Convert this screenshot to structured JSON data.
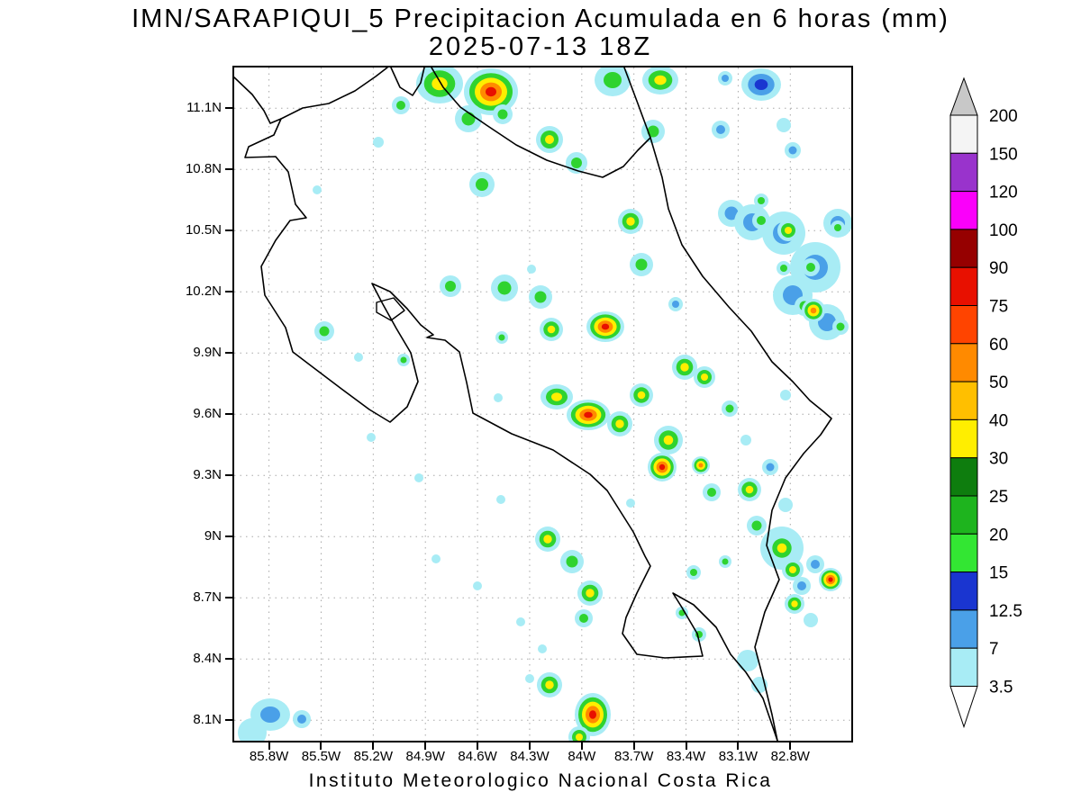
{
  "title": {
    "line1": "IMN/SARAPIQUI_5 Precipitacion Acumulada en 6 horas (mm)",
    "line2": "2025-07-13 18Z"
  },
  "footer": "Instituto Meteorologico Nacional Costa Rica",
  "axes": {
    "y_ticks": [
      "11.1N",
      "10.8N",
      "10.5N",
      "10.2N",
      "9.9N",
      "9.6N",
      "9.3N",
      "9N",
      "8.7N",
      "8.4N",
      "8.1N"
    ],
    "x_ticks": [
      "85.8W",
      "85.5W",
      "85.2W",
      "84.9W",
      "84.6W",
      "84.3W",
      "84W",
      "83.7W",
      "83.4W",
      "83.1W",
      "82.8W"
    ]
  },
  "colorbar": {
    "units": "mm",
    "levels": [
      "200",
      "150",
      "120",
      "100",
      "90",
      "75",
      "60",
      "50",
      "40",
      "30",
      "25",
      "20",
      "15",
      "12.5",
      "7",
      "3.5"
    ],
    "segment_colors": [
      "#f4f4f4",
      "#9933cc",
      "#fa00fa",
      "#960000",
      "#e81000",
      "#ff4400",
      "#ff8a00",
      "#ffbf00",
      "#ffee00",
      "#0e7d0e",
      "#1eb41e",
      "#33e633",
      "#1a35d0",
      "#4aa0e8",
      "#a8ecf5"
    ],
    "above_color": "#c8c8c8",
    "below_color": "#ffffff"
  },
  "map": {
    "grid_color": "#a8a8a8",
    "coast_color": "#000000",
    "palettes": {
      "rain": [
        "#a8ecf5",
        "#2fd32f",
        "#ffee00",
        "#ff8a00",
        "#e81000"
      ],
      "blue": [
        "#a8ecf5",
        "#4aa0e8",
        "#1a35d0"
      ]
    },
    "coast_paths": [
      [
        [
          0,
          11
        ],
        [
          20,
          30
        ],
        [
          33,
          48
        ],
        [
          40,
          62
        ],
        [
          52,
          57
        ],
        [
          44,
          75
        ],
        [
          16,
          88
        ],
        [
          12,
          100
        ],
        [
          46,
          99
        ],
        [
          60,
          116
        ],
        [
          68,
          152
        ],
        [
          80,
          167
        ],
        [
          62,
          170
        ],
        [
          46,
          192
        ],
        [
          30,
          221
        ],
        [
          34,
          253
        ],
        [
          57,
          289
        ],
        [
          65,
          316
        ],
        [
          86,
          332
        ],
        [
          119,
          357
        ],
        [
          150,
          380
        ],
        [
          173,
          394
        ],
        [
          192,
          377
        ],
        [
          204,
          349
        ],
        [
          196,
          317
        ],
        [
          180,
          290
        ],
        [
          165,
          263
        ],
        [
          153,
          240
        ],
        [
          173,
          249
        ],
        [
          192,
          268
        ],
        [
          207,
          286
        ],
        [
          221,
          297
        ],
        [
          214,
          300
        ],
        [
          234,
          303
        ],
        [
          250,
          316
        ],
        [
          258,
          350
        ],
        [
          265,
          384
        ],
        [
          308,
          407
        ],
        [
          354,
          425
        ],
        [
          395,
          452
        ],
        [
          414,
          470
        ],
        [
          443,
          516
        ],
        [
          456,
          543
        ],
        [
          462,
          554
        ],
        [
          447,
          584
        ],
        [
          435,
          611
        ],
        [
          431,
          629
        ],
        [
          447,
          652
        ],
        [
          478,
          656
        ],
        [
          520,
          654
        ],
        [
          514,
          629
        ],
        [
          497,
          600
        ],
        [
          487,
          584
        ],
        [
          510,
          597
        ],
        [
          535,
          622
        ],
        [
          551,
          652
        ],
        [
          568,
          672
        ],
        [
          587,
          701
        ],
        [
          601,
          742
        ],
        [
          603,
          748
        ]
      ],
      [
        [
          52,
          57
        ],
        [
          76,
          45
        ],
        [
          105,
          40
        ],
        [
          134,
          26
        ],
        [
          157,
          10
        ],
        [
          170,
          0
        ]
      ],
      [
        [
          174,
          0
        ],
        [
          184,
          22
        ],
        [
          198,
          31
        ],
        [
          207,
          17
        ],
        [
          211,
          0
        ]
      ],
      [
        [
          219,
          0
        ],
        [
          232,
          22
        ],
        [
          251,
          44
        ],
        [
          280,
          64
        ],
        [
          313,
          86
        ],
        [
          347,
          103
        ],
        [
          382,
          115
        ],
        [
          409,
          122
        ],
        [
          432,
          110
        ],
        [
          448,
          92
        ],
        [
          462,
          78
        ]
      ],
      [
        [
          433,
          0
        ],
        [
          448,
          40
        ],
        [
          462,
          78
        ],
        [
          475,
          122
        ],
        [
          482,
          157
        ],
        [
          497,
          197
        ],
        [
          520,
          232
        ],
        [
          549,
          266
        ],
        [
          574,
          293
        ],
        [
          597,
          327
        ],
        [
          620,
          349
        ],
        [
          639,
          370
        ],
        [
          655,
          383
        ],
        [
          663,
          390
        ],
        [
          651,
          408
        ],
        [
          632,
          429
        ],
        [
          612,
          456
        ],
        [
          597,
          492
        ],
        [
          591,
          531
        ],
        [
          605,
          569
        ],
        [
          589,
          605
        ],
        [
          578,
          644
        ],
        [
          587,
          678
        ],
        [
          597,
          719
        ],
        [
          603,
          748
        ]
      ]
    ],
    "islands": [
      [
        [
          158,
          261
        ],
        [
          177,
          256
        ],
        [
          189,
          270
        ],
        [
          174,
          281
        ],
        [
          158,
          272
        ]
      ]
    ],
    "cells": [
      [
        228,
        18,
        26,
        0,
        3,
        22
      ],
      [
        285,
        27,
        30,
        0,
        5,
        26
      ],
      [
        260,
        57,
        15,
        0,
        2
      ],
      [
        298,
        52,
        11,
        0,
        2
      ],
      [
        185,
        42,
        10,
        0,
        2
      ],
      [
        160,
        83,
        6,
        1,
        1
      ],
      [
        275,
        130,
        14,
        0,
        2
      ],
      [
        350,
        80,
        15,
        0,
        3
      ],
      [
        380,
        106,
        12,
        0,
        2
      ],
      [
        420,
        14,
        20,
        0,
        2,
        18
      ],
      [
        473,
        14,
        20,
        0,
        3,
        16
      ],
      [
        465,
        71,
        13,
        0,
        2
      ],
      [
        540,
        69,
        10,
        1,
        2
      ],
      [
        585,
        19,
        22,
        1,
        3,
        18
      ],
      [
        545,
        12,
        8,
        1,
        2
      ],
      [
        610,
        64,
        8,
        1,
        1
      ],
      [
        620,
        92,
        9,
        1,
        2
      ],
      [
        552,
        162,
        15,
        1,
        2
      ],
      [
        440,
        171,
        14,
        0,
        3
      ],
      [
        452,
        219,
        13,
        0,
        2
      ],
      [
        92,
        136,
        5,
        1,
        1
      ],
      [
        575,
        172,
        20,
        1,
        2
      ],
      [
        610,
        184,
        24,
        1,
        2
      ],
      [
        645,
        222,
        28,
        1,
        2
      ],
      [
        620,
        253,
        22,
        1,
        2
      ],
      [
        658,
        283,
        20,
        1,
        2
      ],
      [
        670,
        173,
        16,
        1,
        2
      ],
      [
        585,
        170,
        10,
        0,
        2
      ],
      [
        615,
        181,
        12,
        0,
        3
      ],
      [
        640,
        222,
        10,
        0,
        2
      ],
      [
        670,
        178,
        8,
        0,
        2
      ],
      [
        633,
        265,
        11,
        0,
        2
      ],
      [
        643,
        270,
        13,
        0,
        4
      ],
      [
        673,
        288,
        9,
        0,
        2
      ],
      [
        585,
        148,
        8,
        0,
        2
      ],
      [
        610,
        223,
        8,
        0,
        2
      ],
      [
        490,
        263,
        8,
        1,
        2
      ],
      [
        240,
        243,
        12,
        0,
        2
      ],
      [
        300,
        245,
        15,
        0,
        2
      ],
      [
        340,
        255,
        13,
        0,
        2
      ],
      [
        352,
        291,
        13,
        0,
        3
      ],
      [
        412,
        288,
        21,
        0,
        5,
        17
      ],
      [
        100,
        293,
        11,
        0,
        2
      ],
      [
        188,
        325,
        7,
        0,
        2
      ],
      [
        297,
        300,
        7,
        0,
        2
      ],
      [
        500,
        333,
        14,
        0,
        3
      ],
      [
        522,
        344,
        12,
        0,
        3
      ],
      [
        330,
        224,
        5,
        1,
        1
      ],
      [
        612,
        364,
        6,
        1,
        1
      ],
      [
        358,
        366,
        18,
        0,
        3,
        14
      ],
      [
        393,
        386,
        24,
        0,
        5,
        17
      ],
      [
        428,
        396,
        14,
        0,
        3
      ],
      [
        452,
        364,
        13,
        0,
        3
      ],
      [
        482,
        414,
        16,
        0,
        3
      ],
      [
        550,
        379,
        9,
        0,
        2
      ],
      [
        568,
        414,
        6,
        1,
        1
      ],
      [
        293,
        367,
        5,
        1,
        1
      ],
      [
        138,
        322,
        5,
        1,
        1
      ],
      [
        475,
        444,
        16,
        0,
        5
      ],
      [
        518,
        442,
        10,
        0,
        4
      ],
      [
        530,
        472,
        10,
        0,
        2
      ],
      [
        572,
        469,
        13,
        0,
        3
      ],
      [
        595,
        444,
        9,
        1,
        2
      ],
      [
        612,
        486,
        8,
        1,
        1
      ],
      [
        152,
        411,
        5,
        1,
        1
      ],
      [
        205,
        456,
        5,
        1,
        1
      ],
      [
        580,
        509,
        11,
        0,
        2
      ],
      [
        608,
        534,
        24,
        1,
        2
      ],
      [
        608,
        534,
        16,
        0,
        3
      ],
      [
        620,
        558,
        12,
        0,
        3
      ],
      [
        645,
        552,
        10,
        1,
        2
      ],
      [
        348,
        524,
        14,
        0,
        3
      ],
      [
        375,
        549,
        13,
        0,
        2
      ],
      [
        545,
        549,
        7,
        0,
        2
      ],
      [
        510,
        561,
        8,
        0,
        2
      ],
      [
        662,
        569,
        13,
        0,
        5
      ],
      [
        630,
        576,
        10,
        1,
        2
      ],
      [
        622,
        596,
        11,
        0,
        3
      ],
      [
        640,
        614,
        8,
        1,
        1
      ],
      [
        296,
        480,
        5,
        1,
        1
      ],
      [
        224,
        546,
        5,
        1,
        1
      ],
      [
        270,
        576,
        5,
        1,
        1
      ],
      [
        395,
        584,
        14,
        0,
        3
      ],
      [
        388,
        612,
        10,
        0,
        2
      ],
      [
        497,
        606,
        7,
        0,
        2
      ],
      [
        516,
        630,
        8,
        0,
        2
      ],
      [
        570,
        659,
        12,
        1,
        1
      ],
      [
        583,
        686,
        9,
        1,
        1
      ],
      [
        350,
        686,
        14,
        0,
        3
      ],
      [
        398,
        719,
        20,
        0,
        5,
        24
      ],
      [
        383,
        744,
        12,
        0,
        3
      ],
      [
        40,
        719,
        22,
        1,
        2,
        18
      ],
      [
        75,
        724,
        10,
        1,
        2
      ],
      [
        20,
        739,
        16,
        1,
        1
      ],
      [
        318,
        616,
        5,
        1,
        1
      ],
      [
        342,
        646,
        5,
        1,
        1
      ],
      [
        328,
        679,
        5,
        1,
        1
      ],
      [
        440,
        484,
        5,
        1,
        1
      ]
    ]
  }
}
